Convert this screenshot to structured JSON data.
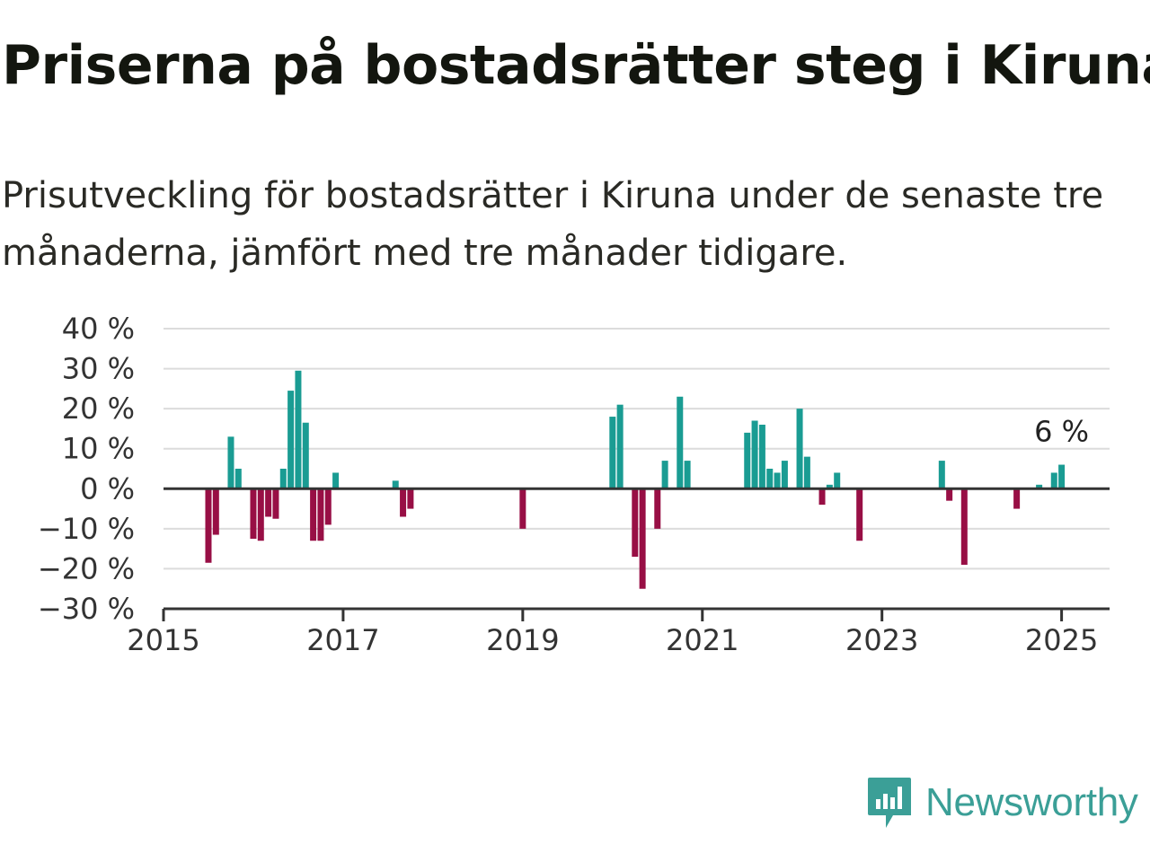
{
  "header": {
    "title": "Priserna på bostadsrätter steg i Kiruna",
    "subtitle": "Prisutveckling för bostadsrätter i Kiruna under de senaste tre månaderna, jämfört med tre månader tidigare."
  },
  "brand": {
    "name": "Newsworthy",
    "icon": "newsworthy-logo-icon"
  },
  "colors": {
    "positive": "#1a9c93",
    "negative": "#980f45",
    "grid": "#dcdcdc",
    "axis": "#333333",
    "brand": "#3b9f97"
  },
  "chart_data": {
    "type": "bar",
    "title": "Priserna på bostadsrätter steg i Kiruna",
    "xlabel": "",
    "ylabel": "",
    "grid": true,
    "ylim": [
      -30,
      40
    ],
    "yticks": [
      40,
      30,
      20,
      10,
      0,
      -10,
      -20,
      -30
    ],
    "ytick_labels": [
      "40 %",
      "30 %",
      "20 %",
      "10 %",
      "0 %",
      "−10 %",
      "−20 %",
      "−30 %"
    ],
    "xlim": [
      "2015-01",
      "2025-07"
    ],
    "xticks": [
      "2015-01",
      "2017-01",
      "2019-01",
      "2021-01",
      "2023-01",
      "2025-01"
    ],
    "xtick_labels": [
      "2015",
      "2017",
      "2019",
      "2021",
      "2023",
      "2025"
    ],
    "annotation": {
      "label": "6 %",
      "x": "2025-01"
    },
    "series": [
      {
        "points": [
          {
            "x": "2015-07",
            "y": -18.5
          },
          {
            "x": "2015-08",
            "y": -11.5
          },
          {
            "x": "2015-10",
            "y": 13
          },
          {
            "x": "2015-11",
            "y": 5
          },
          {
            "x": "2016-01",
            "y": -12.5
          },
          {
            "x": "2016-02",
            "y": -13
          },
          {
            "x": "2016-03",
            "y": -7
          },
          {
            "x": "2016-04",
            "y": -7.5
          },
          {
            "x": "2016-05",
            "y": 5
          },
          {
            "x": "2016-06",
            "y": 24.5
          },
          {
            "x": "2016-07",
            "y": 29.5
          },
          {
            "x": "2016-08",
            "y": 16.5
          },
          {
            "x": "2016-09",
            "y": -13
          },
          {
            "x": "2016-10",
            "y": -13
          },
          {
            "x": "2016-11",
            "y": -9
          },
          {
            "x": "2016-12",
            "y": 4
          },
          {
            "x": "2017-08",
            "y": 2
          },
          {
            "x": "2017-09",
            "y": -7
          },
          {
            "x": "2017-10",
            "y": -5
          },
          {
            "x": "2019-01",
            "y": -10
          },
          {
            "x": "2020-01",
            "y": 18
          },
          {
            "x": "2020-02",
            "y": 21
          },
          {
            "x": "2020-04",
            "y": -17
          },
          {
            "x": "2020-05",
            "y": -25
          },
          {
            "x": "2020-07",
            "y": -10
          },
          {
            "x": "2020-08",
            "y": 7
          },
          {
            "x": "2020-10",
            "y": 23
          },
          {
            "x": "2020-11",
            "y": 7
          },
          {
            "x": "2021-07",
            "y": 14
          },
          {
            "x": "2021-08",
            "y": 17
          },
          {
            "x": "2021-09",
            "y": 16
          },
          {
            "x": "2021-10",
            "y": 5
          },
          {
            "x": "2021-11",
            "y": 4
          },
          {
            "x": "2021-12",
            "y": 7
          },
          {
            "x": "2022-02",
            "y": 20
          },
          {
            "x": "2022-03",
            "y": 8
          },
          {
            "x": "2022-05",
            "y": -4
          },
          {
            "x": "2022-06",
            "y": 1
          },
          {
            "x": "2022-07",
            "y": 4
          },
          {
            "x": "2022-10",
            "y": -13
          },
          {
            "x": "2023-09",
            "y": 7
          },
          {
            "x": "2023-10",
            "y": -3
          },
          {
            "x": "2023-12",
            "y": -19
          },
          {
            "x": "2024-07",
            "y": -5
          },
          {
            "x": "2024-10",
            "y": 1
          },
          {
            "x": "2024-12",
            "y": 4
          },
          {
            "x": "2025-01",
            "y": 6
          }
        ]
      }
    ]
  }
}
